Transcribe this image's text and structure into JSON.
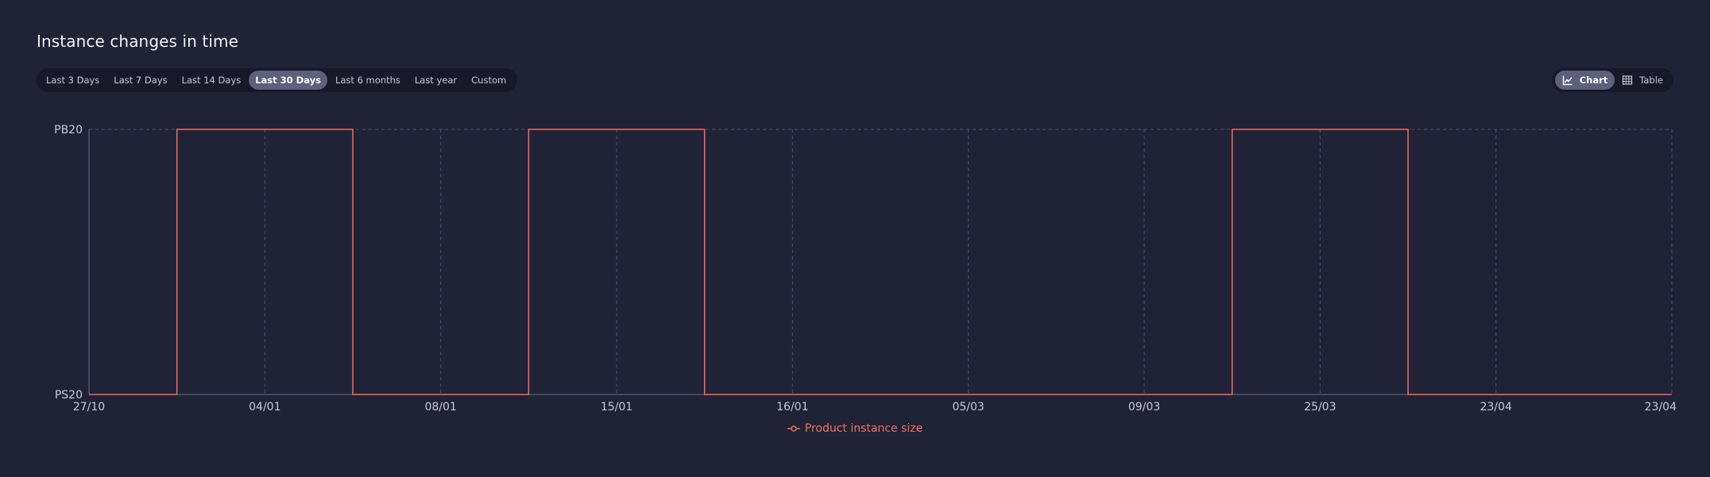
{
  "title": "Instance changes in time",
  "ranges": [
    {
      "label": "Last 3 Days",
      "active": false
    },
    {
      "label": "Last 7 Days",
      "active": false
    },
    {
      "label": "Last 14 Days",
      "active": false
    },
    {
      "label": "Last 30 Days",
      "active": true
    },
    {
      "label": "Last 6 months",
      "active": false
    },
    {
      "label": "Last year",
      "active": false
    },
    {
      "label": "Custom",
      "active": false
    }
  ],
  "view_toggle": {
    "chart_label": "Chart",
    "table_label": "Table",
    "active": "chart",
    "chart_icon": "chart-icon",
    "table_icon": "table-icon"
  },
  "colors": {
    "background": "#202236",
    "series": "#f26d5f",
    "grid": "#50536d",
    "active_pill": "#5d5f7c"
  },
  "chart_data": {
    "type": "line",
    "step": true,
    "x": [
      "27/10",
      "04/01",
      "08/01",
      "15/01",
      "16/01",
      "05/03",
      "09/03",
      "25/03",
      "23/04",
      "23/04"
    ],
    "y_categories": [
      "PS20",
      "PB20"
    ],
    "series": [
      {
        "name": "Product instance size",
        "color": "#f26d5f",
        "steps": [
          {
            "from": 0.0,
            "to": 0.5,
            "value": "PS20"
          },
          {
            "from": 0.5,
            "to": 1.5,
            "value": "PB20"
          },
          {
            "from": 1.5,
            "to": 2.5,
            "value": "PS20"
          },
          {
            "from": 2.5,
            "to": 3.5,
            "value": "PB20"
          },
          {
            "from": 3.5,
            "to": 6.5,
            "value": "PS20"
          },
          {
            "from": 6.5,
            "to": 7.5,
            "value": "PB20"
          },
          {
            "from": 7.5,
            "to": 8.5,
            "value": "PS20"
          },
          {
            "from": 8.5,
            "to": 9.0,
            "value": "PS20"
          }
        ]
      }
    ],
    "grid": true,
    "legend_position": "bottom-center"
  }
}
